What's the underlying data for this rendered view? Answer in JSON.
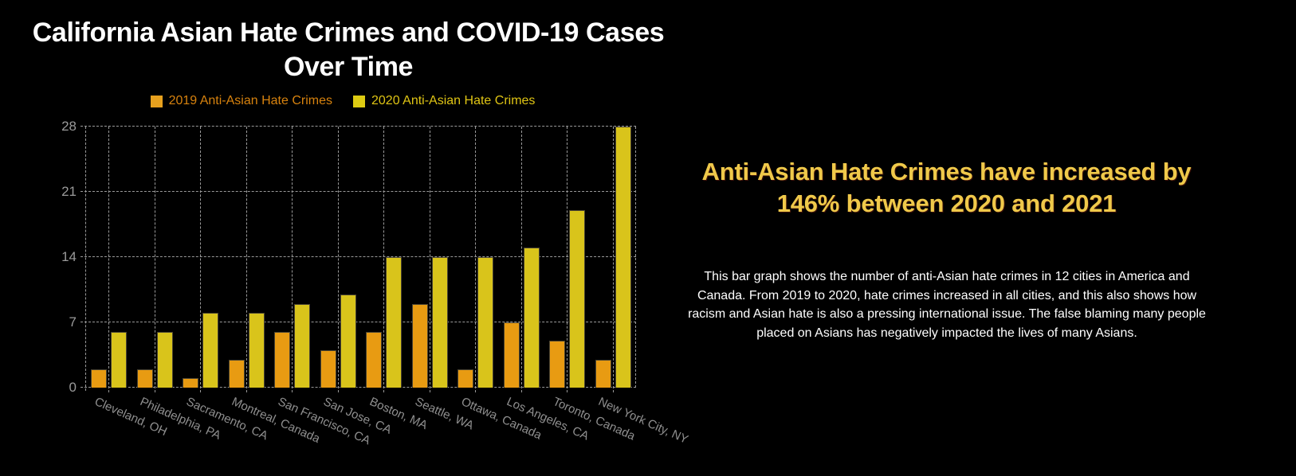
{
  "page": {
    "background": "#000000"
  },
  "chart": {
    "title": "California Asian Hate Crimes and COVID-19 Cases Over Time",
    "legend": {
      "items": [
        {
          "label": "2019 Anti-Asian Hate Crimes",
          "text_color": "#D7820E",
          "swatch_color": "#E7A11E"
        },
        {
          "label": "2020 Anti-Asian Hate Crimes",
          "text_color": "#DFC414",
          "swatch_color": "#DDCB12"
        }
      ]
    }
  },
  "chart_data": {
    "type": "bar",
    "title": "California Asian Hate Crimes and COVID-19 Cases Over Time",
    "categories": [
      "Cleveland, OH",
      "Philadelphia, PA",
      "Sacramento, CA",
      "Montreal, Canada",
      "San Francisco, CA",
      "San Jose, CA",
      "Boston, MA",
      "Seattle, WA",
      "Ottawa, Canada",
      "Los Angeles, CA",
      "Toronto, Canada",
      "New York City, NY"
    ],
    "series": [
      {
        "name": "2019 Anti-Asian Hate Crimes",
        "color": "#E89B12",
        "values": [
          2,
          2,
          1,
          3,
          6,
          4,
          6,
          9,
          2,
          7,
          5,
          3
        ]
      },
      {
        "name": "2020 Anti-Asian Hate Crimes",
        "color": "#D9C41B",
        "values": [
          6,
          6,
          8,
          8,
          9,
          10,
          14,
          14,
          14,
          15,
          19,
          28
        ]
      }
    ],
    "xlabel": "",
    "ylabel": "",
    "ylim": [
      0,
      28
    ],
    "yticks": [
      0,
      7,
      14,
      21,
      28
    ],
    "grid": true,
    "grid_style": "dashed",
    "grid_color": "#9a9a9a",
    "tick_label_color": "#9a9a9a",
    "legend_position": "top",
    "background": "#000000"
  },
  "panel": {
    "heading": "Anti-Asian Hate Crimes have increased by 146% between 2020 and 2021",
    "heading_color": "#EFC94A",
    "body": "This bar graph shows the number of anti-Asian hate crimes in 12 cities in America and Canada. From 2019 to 2020, hate crimes increased in all cities, and this also shows how racism and Asian hate is also a pressing international issue. The false blaming many people placed on Asians has negatively impacted the lives of many Asians."
  }
}
